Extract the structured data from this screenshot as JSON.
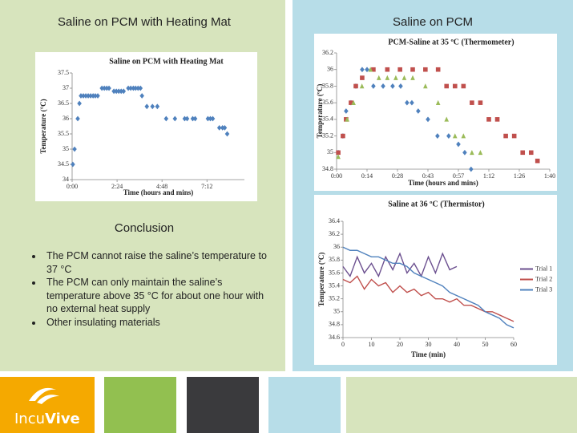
{
  "slide": {
    "left_title": "Saline on PCM with Heating Mat",
    "right_title": "Saline on PCM",
    "conclusion": {
      "heading": "Conclusion",
      "bullets": [
        "The PCM cannot raise the saline’s temperature to 37 °C",
        "The PCM can only maintain the saline’s temperature above 35 °C for about one hour with no external heat supply",
        "Other insulating materials"
      ]
    },
    "logo": {
      "part_a": "Incu",
      "part_b": "Vive"
    }
  },
  "chart_data": [
    {
      "type": "scatter",
      "title": "Saline on PCM with  Heating Mat",
      "x_label": "Time (hours and mins)",
      "y_label": "Temperature (°C)",
      "xlim": [
        0,
        9.2
      ],
      "xticks": [
        {
          "value": 0,
          "label": "0:00"
        },
        {
          "value": 2.4,
          "label": "2:24"
        },
        {
          "value": 4.8,
          "label": "4:48"
        },
        {
          "value": 7.2,
          "label": "7:12"
        }
      ],
      "ylim": [
        34,
        37.5
      ],
      "yticks": [
        34,
        34.5,
        35,
        35.5,
        36,
        36.5,
        37,
        37.5
      ],
      "series": [
        {
          "color": "#4f81bd",
          "marker": "diamond",
          "x": [
            0.04,
            0.13,
            0.3,
            0.39,
            0.47,
            0.6,
            0.73,
            0.86,
            0.99,
            1.12,
            1.24,
            1.37,
            1.59,
            1.72,
            1.85,
            1.97,
            2.23,
            2.36,
            2.49,
            2.62,
            2.75,
            3.0,
            3.13,
            3.27,
            3.39,
            3.52,
            3.65,
            3.73,
            3.99,
            4.29,
            4.55,
            5.02,
            5.49,
            6.01,
            6.14,
            6.44,
            6.57,
            7.25,
            7.38,
            7.51,
            7.86,
            8.03,
            8.15,
            8.28
          ],
          "values": [
            34.5,
            35,
            36,
            36.5,
            36.75,
            36.75,
            36.75,
            36.75,
            36.75,
            36.75,
            36.75,
            36.75,
            37,
            37,
            37,
            37,
            36.9,
            36.9,
            36.9,
            36.9,
            36.9,
            37,
            37,
            37,
            37,
            37,
            37,
            36.75,
            36.4,
            36.4,
            36.4,
            36,
            36,
            36,
            36,
            36,
            36,
            36,
            36,
            36,
            35.7,
            35.7,
            35.7,
            35.5
          ]
        }
      ]
    },
    {
      "type": "scatter",
      "title": "PCM-Saline at 35 ºC (Thermometer)",
      "x_label": "Time (hours and mins)",
      "y_label": "Temperature (ºC)",
      "xlim": [
        0,
        100.8
      ],
      "xticks": [
        {
          "value": 0,
          "label": "0:00"
        },
        {
          "value": 14.4,
          "label": "0:14"
        },
        {
          "value": 28.8,
          "label": "0:28"
        },
        {
          "value": 43.2,
          "label": "0:43"
        },
        {
          "value": 57.6,
          "label": "0:57"
        },
        {
          "value": 72,
          "label": "1:12"
        },
        {
          "value": 86.4,
          "label": "1:26"
        },
        {
          "value": 100.8,
          "label": "1:40"
        }
      ],
      "ylim": [
        34.8,
        36.2
      ],
      "yticks": [
        34.8,
        35,
        35.2,
        35.4,
        35.6,
        35.8,
        36,
        36.2
      ],
      "series": [
        {
          "color": "#4f81bd",
          "marker": "diamond",
          "x": [
            0.8,
            3,
            4.5,
            6.8,
            9.1,
            12.1,
            14.4,
            17.4,
            22,
            26.5,
            30.3,
            33.3,
            35.6,
            38.6,
            43.2,
            47.7,
            53,
            57.6,
            60.6,
            63.6
          ],
          "values": [
            35,
            35.2,
            35.5,
            35.6,
            35.8,
            36,
            36,
            35.8,
            35.8,
            35.8,
            35.8,
            35.6,
            35.6,
            35.5,
            35.4,
            35.2,
            35.2,
            35.1,
            35,
            34.8
          ]
        },
        {
          "color": "#c0504d",
          "marker": "square",
          "x": [
            0.8,
            3,
            4.5,
            6.8,
            9.1,
            12.1,
            17.4,
            24,
            30,
            36,
            42,
            48,
            52,
            56,
            60,
            64,
            68,
            72,
            76,
            80,
            84,
            88,
            92,
            95
          ],
          "values": [
            35,
            35.2,
            35.4,
            35.6,
            35.8,
            35.9,
            36,
            36,
            36,
            36,
            36,
            36,
            35.8,
            35.8,
            35.8,
            35.6,
            35.6,
            35.4,
            35.4,
            35.2,
            35.2,
            35,
            35,
            34.9
          ]
        },
        {
          "color": "#9bbb59",
          "marker": "triangle",
          "x": [
            0.8,
            5,
            8,
            12,
            16,
            20,
            24,
            28,
            32,
            36,
            42,
            48,
            52,
            56,
            60,
            64,
            68
          ],
          "values": [
            34.95,
            35.4,
            35.6,
            35.8,
            36,
            35.9,
            35.9,
            35.9,
            35.9,
            35.9,
            35.8,
            35.6,
            35.4,
            35.2,
            35.2,
            35,
            35
          ]
        }
      ]
    },
    {
      "type": "line",
      "title": "Saline at 36 ºC (Thermistor)",
      "x_label": "Time (min)",
      "y_label": "Temperature (ºC)",
      "xlim": [
        0,
        60
      ],
      "xticks": [
        0,
        10,
        20,
        30,
        40,
        50,
        60
      ],
      "ylim": [
        34.6,
        36.4
      ],
      "yticks": [
        34.6,
        34.8,
        35,
        35.2,
        35.4,
        35.6,
        35.8,
        36,
        36.2,
        36.4
      ],
      "legend": "right",
      "x": [
        0,
        2.5,
        5,
        7.5,
        10,
        12.5,
        15,
        17.5,
        20,
        22.5,
        25,
        27.5,
        30,
        32.5,
        35,
        37.5,
        40,
        42.5,
        45,
        47.5,
        50,
        52.5,
        55,
        57.5,
        60
      ],
      "series": [
        {
          "name": "Trial 1",
          "color": "#6b4f8f",
          "values": [
            35.7,
            35.55,
            35.85,
            35.6,
            35.75,
            35.55,
            35.85,
            35.65,
            35.9,
            35.6,
            35.75,
            35.55,
            35.85,
            35.6,
            35.9,
            35.65,
            35.7,
            null,
            null,
            null,
            null,
            null,
            null,
            null,
            null
          ]
        },
        {
          "name": "Trial 2",
          "color": "#c0504d",
          "values": [
            35.5,
            35.45,
            35.55,
            35.35,
            35.5,
            35.4,
            35.45,
            35.3,
            35.4,
            35.3,
            35.35,
            35.25,
            35.3,
            35.2,
            35.2,
            35.15,
            35.2,
            35.1,
            35.1,
            35.05,
            35,
            35,
            34.95,
            34.9,
            34.85
          ]
        },
        {
          "name": "Trial 3",
          "color": "#4f81bd",
          "values": [
            36,
            35.95,
            35.95,
            35.9,
            35.85,
            35.85,
            35.8,
            35.75,
            35.75,
            35.7,
            35.6,
            35.55,
            35.5,
            35.45,
            35.4,
            35.3,
            35.25,
            35.2,
            35.15,
            35.1,
            35,
            34.95,
            34.9,
            34.8,
            34.75
          ]
        }
      ]
    }
  ]
}
